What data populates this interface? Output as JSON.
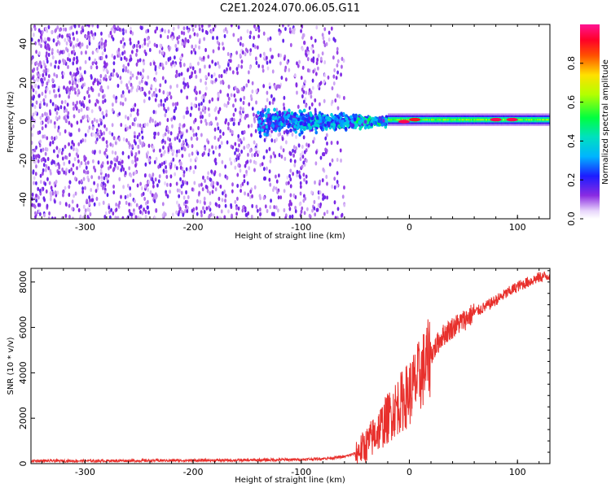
{
  "figure": {
    "title": "C2E1.2024.070.06.05.G11"
  },
  "chart_data": [
    {
      "type": "heatmap",
      "title": "C2E1.2024.070.06.05.G11",
      "xlabel": "Height of straight line (km)",
      "ylabel": "Frequency (Hz)",
      "xlim": [
        -350,
        130
      ],
      "ylim": [
        -50,
        50
      ],
      "xticks": [
        -300,
        -200,
        -100,
        0,
        100
      ],
      "yticks": [
        -40,
        -20,
        0,
        20,
        40
      ],
      "colorbar": {
        "label": "Normalized spectral amplitude",
        "range": [
          0,
          1
        ],
        "ticks": [
          0.0,
          0.2,
          0.4,
          0.6,
          0.8
        ],
        "colormap": "rainbow (white-purple-blue-cyan-green-yellow-red-magenta)"
      },
      "regions": [
        {
          "x_range": [
            -350,
            -60
          ],
          "freq_range": [
            -50,
            50
          ],
          "amplitude": "low (0.05-0.25), scattered noise"
        },
        {
          "x_range": [
            -140,
            -20
          ],
          "freq_range": [
            -10,
            10
          ],
          "amplitude": "0.1-0.6, broadening signal band"
        },
        {
          "x_range": [
            -20,
            130
          ],
          "freq_range": [
            -3,
            3
          ],
          "amplitude": "0.4-1.0, narrow carrier line"
        }
      ],
      "hotspots": [
        {
          "x": -5,
          "freq": 0,
          "amplitude": 0.95
        },
        {
          "x": 5,
          "freq": 1,
          "amplitude": 0.9
        },
        {
          "x": 80,
          "freq": 1,
          "amplitude": 0.95
        },
        {
          "x": 95,
          "freq": 1,
          "amplitude": 0.95
        }
      ],
      "grid": false
    },
    {
      "type": "line",
      "xlabel": "Height of straight line (km)",
      "ylabel": "SNR (10 * v/v)",
      "xlim": [
        -350,
        130
      ],
      "ylim": [
        0,
        8600
      ],
      "xticks": [
        -300,
        -200,
        -100,
        0,
        100
      ],
      "yticks": [
        0,
        2000,
        4000,
        6000,
        8000
      ],
      "series": [
        {
          "color": "#e8302c",
          "x": [
            -350,
            -300,
            -250,
            -200,
            -150,
            -100,
            -80,
            -60,
            -50,
            -40,
            -30,
            -20,
            -10,
            0,
            10,
            20,
            30,
            40,
            50,
            60,
            70,
            80,
            90,
            100,
            110,
            120,
            130
          ],
          "y": [
            120,
            120,
            130,
            140,
            150,
            180,
            220,
            300,
            450,
            800,
            1400,
            2000,
            2600,
            3100,
            3900,
            4800,
            5600,
            6000,
            6300,
            6650,
            6900,
            7200,
            7500,
            7800,
            8000,
            8200,
            8300
          ]
        }
      ],
      "grid": false
    }
  ]
}
